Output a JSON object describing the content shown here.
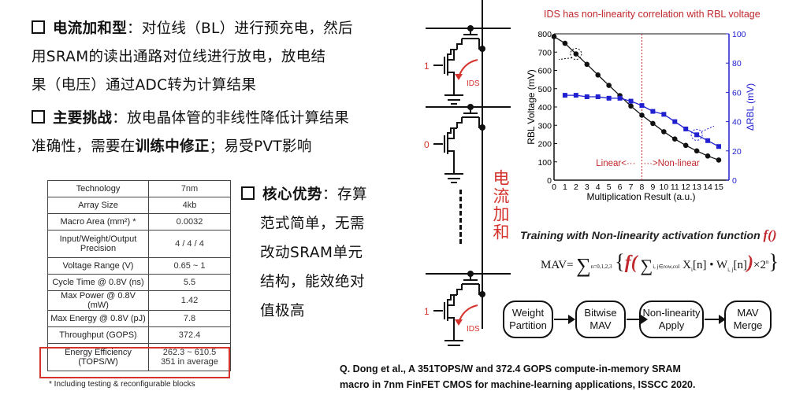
{
  "text": {
    "line1_bold": "电流加和型",
    "line1_rest": "：对位线（BL）进行预充电，然后",
    "line2": "用SRAM的读出通路对位线进行放电，放电结",
    "line3": "果（电压）通过ADC转为计算结果",
    "line4_bold": "主要挑战",
    "line4_rest": "：放电晶体管的非线性降低计算结果",
    "line5_a": "准确性，需要在",
    "line5_bold": "训练中修正",
    "line5_b": "；易受PVT影响",
    "adv_bold": "核心优势",
    "adv_1": "：存算",
    "adv_2": "范式简单，无需",
    "adv_3": "改动SRAM单元",
    "adv_4": "结构，能效绝对",
    "adv_5": "值极高"
  },
  "table": {
    "rows": [
      {
        "k": "Technology",
        "v": "7nm"
      },
      {
        "k": "Array Size",
        "v": "4kb"
      },
      {
        "k": "Macro Area (mm²) *",
        "v": "0.0032"
      },
      {
        "k": "Input/Weight/Output Precision",
        "v": "4 / 4 / 4"
      },
      {
        "k": "Voltage Range (V)",
        "v": "0.65 ~ 1"
      },
      {
        "k": "Cycle Time @ 0.8V (ns)",
        "v": "5.5"
      },
      {
        "k": "Max Power @ 0.8V (mW)",
        "v": "1.42"
      },
      {
        "k": "Max Energy @ 0.8V (pJ)",
        "v": "7.8"
      },
      {
        "k": "Throughput (GOPS)",
        "v": "372.4"
      },
      {
        "k": "Energy Efficiency (TOPS/W)",
        "v": "262.3 ~ 610.5",
        "v2": "351 in average"
      }
    ],
    "footnote": "* Including testing & reconfigurable blocks",
    "highlight_color": "#d4332c"
  },
  "circuit": {
    "inputs": [
      "1",
      "0",
      "1"
    ],
    "current_label": "IDS",
    "vertical_label": "电流加和"
  },
  "chart_data": {
    "type": "line",
    "title": "IDS has non-linearity correlation with RBL voltage",
    "xlabel": "Multiplication Result (a.u.)",
    "ylabel": "RBL Voltage (mV)",
    "y2label": "ΔRBL (mV)",
    "xlim": [
      0,
      15
    ],
    "ylim": [
      0,
      800
    ],
    "y2lim": [
      0,
      100
    ],
    "xticks": [
      0,
      1,
      2,
      3,
      4,
      5,
      6,
      7,
      8,
      9,
      10,
      11,
      12,
      13,
      14,
      15
    ],
    "yticks": [
      0,
      100,
      200,
      300,
      400,
      500,
      600,
      700,
      800
    ],
    "y2ticks": [
      0,
      20,
      40,
      60,
      80,
      100
    ],
    "series": [
      {
        "name": "RBL Voltage",
        "axis": "left",
        "color": "#111111",
        "marker": "circle",
        "x": [
          0,
          1,
          2,
          3,
          4,
          5,
          6,
          7,
          8,
          9,
          10,
          11,
          12,
          13,
          14,
          15
        ],
        "values": [
          785,
          748,
          690,
          633,
          575,
          518,
          462,
          405,
          355,
          310,
          265,
          225,
          190,
          160,
          132,
          110
        ]
      },
      {
        "name": "ΔRBL",
        "axis": "right",
        "color": "#2020d0",
        "marker": "square",
        "x": [
          1,
          2,
          3,
          4,
          5,
          6,
          7,
          8,
          9,
          10,
          11,
          12,
          13,
          14,
          15
        ],
        "values": [
          58,
          58,
          57,
          57,
          56,
          56,
          54,
          51,
          47,
          45,
          40,
          35,
          31,
          27,
          23
        ]
      }
    ],
    "annotations": {
      "divider_x": 8,
      "linear": "Linear",
      "nonlinear": "Non-linear"
    }
  },
  "training": {
    "title": "Training with Non-linearity activation function ",
    "f": "f()",
    "formula_lhs": "MAV=",
    "sum_sub": "n=0,1,2,3",
    "inner_sub": "i, j∈row,col",
    "inner": "X",
    "inner_i": "i",
    "inner_mid": "[n] • W",
    "inner_ij": "i, j",
    "inner_end": "[n]",
    "times": "×2",
    "pow": "n",
    "steps": [
      "Weight Partition",
      "Bitwise MAV",
      "Non-linearity Apply",
      "MAV Merge"
    ]
  },
  "citation": {
    "line1": "Q. Dong et al., A 351TOPS/W and 372.4 GOPS compute-in-memory SRAM",
    "line2": "macro in 7nm FinFET CMOS for machine-learning applications, ISSCC 2020."
  }
}
